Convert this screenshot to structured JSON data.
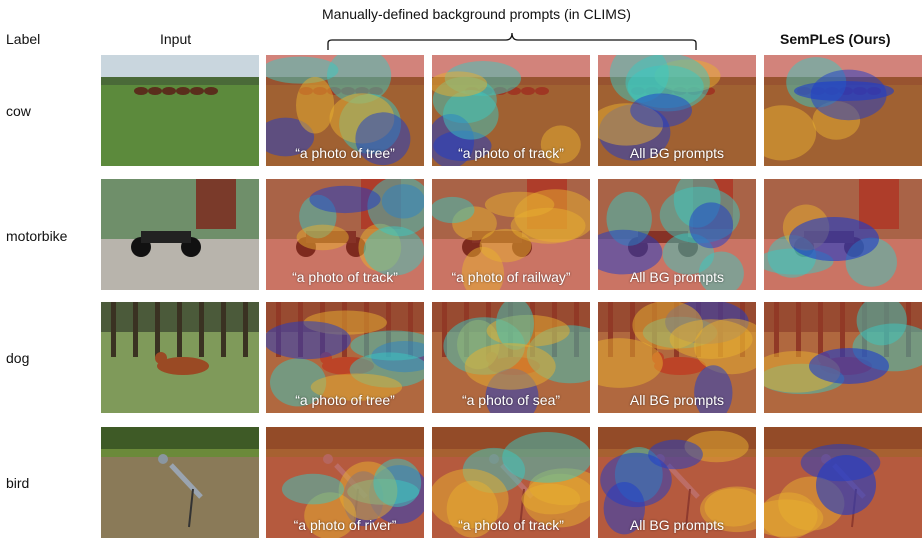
{
  "headers": {
    "label": "Label",
    "input": "Input",
    "background_group": "Manually-defined background prompts (in CLIMS)",
    "ours": "SemPLeS (Ours)"
  },
  "rows": [
    {
      "label": "cow",
      "captions": [
        "“a photo of tree”",
        "“a photo of track”",
        "All BG prompts"
      ]
    },
    {
      "label": "motorbike",
      "captions": [
        "“a photo of track”",
        "“a photo of railway”",
        "All BG prompts"
      ]
    },
    {
      "label": "dog",
      "captions": [
        "“a photo of tree”",
        "“a photo of sea”",
        "All BG prompts"
      ]
    },
    {
      "label": "bird",
      "captions": [
        "“a photo of river”",
        "“a photo of track”",
        "All BG prompts"
      ]
    }
  ],
  "colors": {
    "heat_hot": "#d8402a",
    "heat_warm": "#e8b030",
    "heat_mid": "#3cc8c0",
    "heat_cold": "#1c3ccc"
  }
}
